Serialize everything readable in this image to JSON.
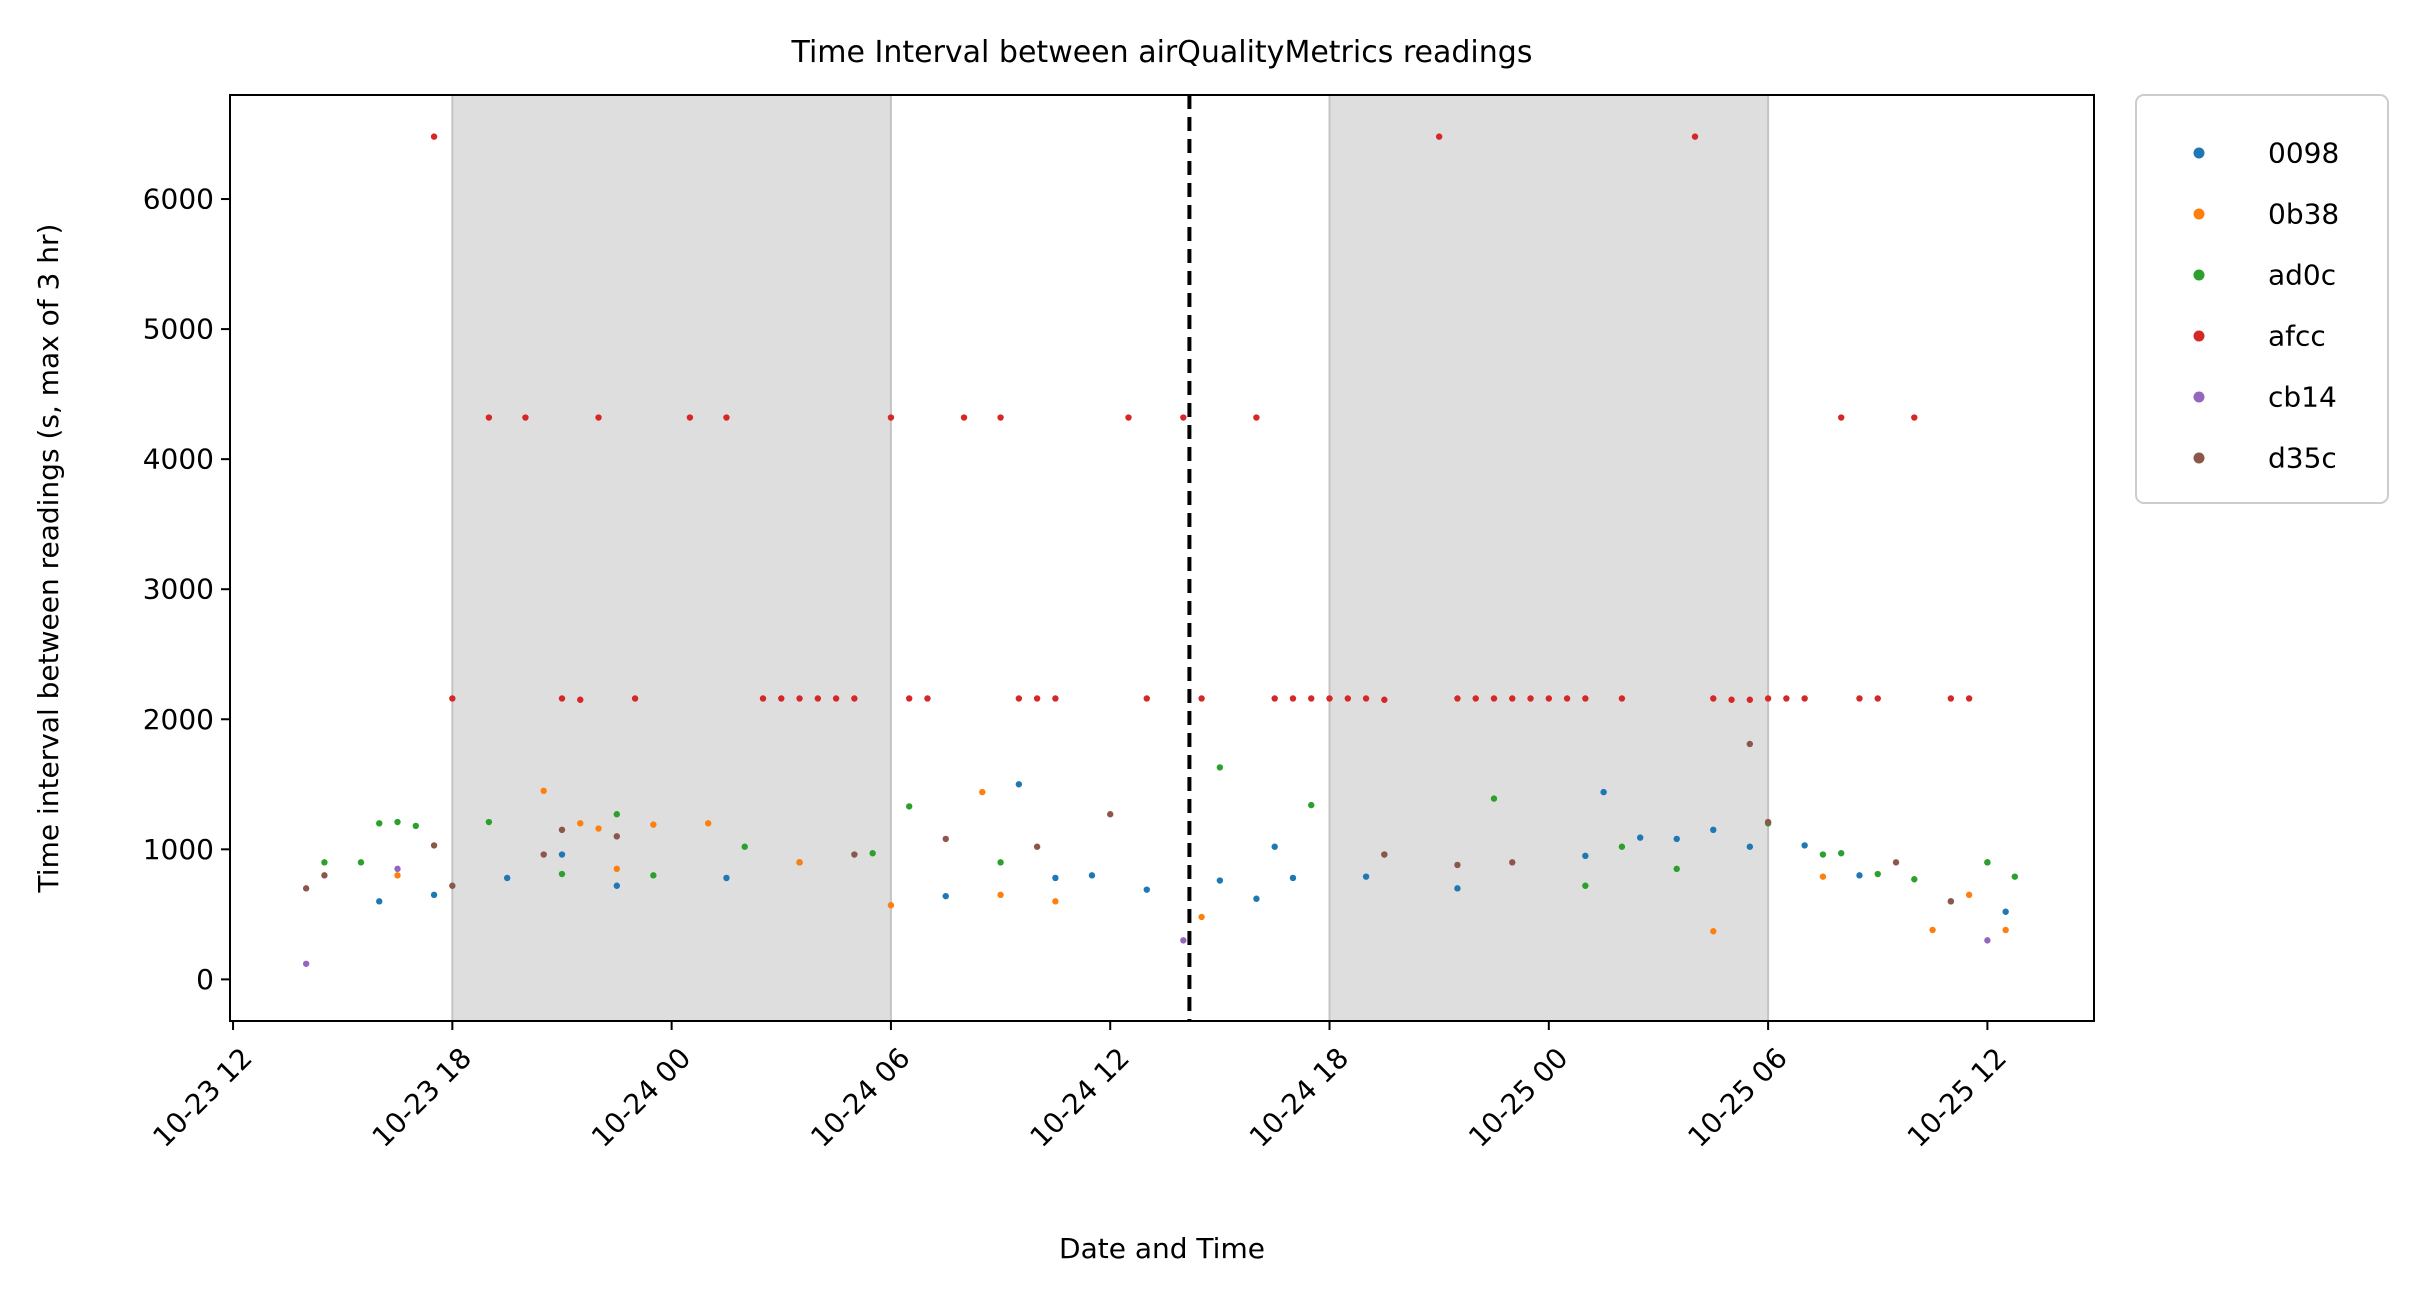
{
  "chart_data": {
    "type": "scatter",
    "title": "Time Interval between airQualityMetrics readings",
    "xlabel": "Date and Time",
    "ylabel": "Time interval between readings (s, max of 3 hr)",
    "x_ticks": [
      "10-23 12",
      "10-23 18",
      "10-24 00",
      "10-24 06",
      "10-24 12",
      "10-24 18",
      "10-25 00",
      "10-25 06",
      "10-25 12"
    ],
    "y_ticks": [
      "0",
      "1000",
      "2000",
      "3000",
      "4000",
      "5000",
      "6000"
    ],
    "xlim": [
      "2023-10-23 11:55",
      "2023-10-25 14:55"
    ],
    "ylim": [
      -320,
      6800
    ],
    "shaded_periods": [
      {
        "start": "2023-10-23 18:00",
        "end": "2023-10-24 06:00"
      },
      {
        "start": "2023-10-24 18:00",
        "end": "2023-10-25 06:00"
      }
    ],
    "vline": {
      "x": "2023-10-24 14:10",
      "style": "dashed"
    },
    "grid": false,
    "legend_position": "outside-top-right",
    "series": [
      {
        "name": "0098",
        "color": "#1f77b4",
        "points": [
          [
            "2023-10-23 16:00",
            600
          ],
          [
            "2023-10-23 17:30",
            650
          ],
          [
            "2023-10-23 19:30",
            780
          ],
          [
            "2023-10-23 21:00",
            960
          ],
          [
            "2023-10-23 22:30",
            720
          ],
          [
            "2023-10-24 01:30",
            780
          ],
          [
            "2023-10-24 03:30",
            900
          ],
          [
            "2023-10-24 07:30",
            640
          ],
          [
            "2023-10-24 09:30",
            1500
          ],
          [
            "2023-10-24 10:30",
            780
          ],
          [
            "2023-10-24 11:30",
            800
          ],
          [
            "2023-10-24 13:00",
            690
          ],
          [
            "2023-10-24 15:00",
            760
          ],
          [
            "2023-10-24 16:00",
            620
          ],
          [
            "2023-10-24 16:30",
            1020
          ],
          [
            "2023-10-24 17:00",
            780
          ],
          [
            "2023-10-24 19:00",
            790
          ],
          [
            "2023-10-24 21:30",
            700
          ],
          [
            "2023-10-25 01:00",
            950
          ],
          [
            "2023-10-25 01:30",
            1440
          ],
          [
            "2023-10-25 02:30",
            1090
          ],
          [
            "2023-10-25 03:30",
            1080
          ],
          [
            "2023-10-25 04:30",
            1150
          ],
          [
            "2023-10-25 05:30",
            1020
          ],
          [
            "2023-10-25 07:00",
            1030
          ],
          [
            "2023-10-25 08:30",
            800
          ],
          [
            "2023-10-25 11:00",
            600
          ],
          [
            "2023-10-25 12:00",
            900
          ],
          [
            "2023-10-25 12:30",
            520
          ]
        ]
      },
      {
        "name": "0b38",
        "color": "#ff7f0e",
        "points": [
          [
            "2023-10-23 16:30",
            800
          ],
          [
            "2023-10-23 20:30",
            1450
          ],
          [
            "2023-10-23 21:30",
            1200
          ],
          [
            "2023-10-23 22:00",
            1160
          ],
          [
            "2023-10-23 22:30",
            850
          ],
          [
            "2023-10-23 23:30",
            1190
          ],
          [
            "2023-10-24 01:00",
            1200
          ],
          [
            "2023-10-24 03:30",
            900
          ],
          [
            "2023-10-24 06:00",
            570
          ],
          [
            "2023-10-24 08:30",
            1440
          ],
          [
            "2023-10-24 09:00",
            650
          ],
          [
            "2023-10-24 10:30",
            600
          ],
          [
            "2023-10-24 14:30",
            480
          ],
          [
            "2023-10-25 04:30",
            370
          ],
          [
            "2023-10-25 07:30",
            790
          ],
          [
            "2023-10-25 10:30",
            380
          ],
          [
            "2023-10-25 11:30",
            650
          ],
          [
            "2023-10-25 12:30",
            380
          ]
        ]
      },
      {
        "name": "ad0c",
        "color": "#2ca02c",
        "points": [
          [
            "2023-10-23 14:30",
            900
          ],
          [
            "2023-10-23 15:30",
            900
          ],
          [
            "2023-10-23 16:00",
            1200
          ],
          [
            "2023-10-23 16:30",
            1210
          ],
          [
            "2023-10-23 17:00",
            1180
          ],
          [
            "2023-10-23 19:00",
            1210
          ],
          [
            "2023-10-23 21:00",
            810
          ],
          [
            "2023-10-23 22:30",
            1270
          ],
          [
            "2023-10-23 23:30",
            800
          ],
          [
            "2023-10-24 02:00",
            1020
          ],
          [
            "2023-10-24 05:30",
            970
          ],
          [
            "2023-10-24 06:30",
            1330
          ],
          [
            "2023-10-24 09:00",
            900
          ],
          [
            "2023-10-24 15:00",
            1630
          ],
          [
            "2023-10-24 17:30",
            1340
          ],
          [
            "2023-10-24 19:30",
            960
          ],
          [
            "2023-10-24 22:30",
            1390
          ],
          [
            "2023-10-25 01:00",
            720
          ],
          [
            "2023-10-25 02:00",
            1020
          ],
          [
            "2023-10-25 03:30",
            850
          ],
          [
            "2023-10-25 06:00",
            1200
          ],
          [
            "2023-10-25 07:30",
            960
          ],
          [
            "2023-10-25 08:00",
            970
          ],
          [
            "2023-10-25 09:00",
            810
          ],
          [
            "2023-10-25 10:00",
            770
          ],
          [
            "2023-10-25 12:00",
            900
          ],
          [
            "2023-10-25 12:45",
            790
          ]
        ]
      },
      {
        "name": "afcc",
        "color": "#d62728",
        "points": [
          [
            "2023-10-23 17:30",
            6480
          ],
          [
            "2023-10-23 18:00",
            2160
          ],
          [
            "2023-10-23 19:00",
            4320
          ],
          [
            "2023-10-23 20:00",
            4320
          ],
          [
            "2023-10-23 21:00",
            2160
          ],
          [
            "2023-10-23 21:30",
            2150
          ],
          [
            "2023-10-23 22:00",
            4320
          ],
          [
            "2023-10-23 23:00",
            2160
          ],
          [
            "2023-10-24 00:30",
            4320
          ],
          [
            "2023-10-24 01:30",
            4320
          ],
          [
            "2023-10-24 02:30",
            2160
          ],
          [
            "2023-10-24 03:00",
            2160
          ],
          [
            "2023-10-24 03:30",
            2160
          ],
          [
            "2023-10-24 04:00",
            2160
          ],
          [
            "2023-10-24 04:30",
            2160
          ],
          [
            "2023-10-24 05:00",
            2160
          ],
          [
            "2023-10-24 06:00",
            4320
          ],
          [
            "2023-10-24 06:30",
            2160
          ],
          [
            "2023-10-24 07:00",
            2160
          ],
          [
            "2023-10-24 08:00",
            4320
          ],
          [
            "2023-10-24 09:00",
            4320
          ],
          [
            "2023-10-24 09:30",
            2160
          ],
          [
            "2023-10-24 10:00",
            2160
          ],
          [
            "2023-10-24 10:30",
            2160
          ],
          [
            "2023-10-24 12:30",
            4320
          ],
          [
            "2023-10-24 13:00",
            2160
          ],
          [
            "2023-10-24 14:00",
            4320
          ],
          [
            "2023-10-24 14:30",
            2160
          ],
          [
            "2023-10-24 16:00",
            4320
          ],
          [
            "2023-10-24 16:30",
            2160
          ],
          [
            "2023-10-24 17:00",
            2160
          ],
          [
            "2023-10-24 17:30",
            2160
          ],
          [
            "2023-10-24 18:00",
            2160
          ],
          [
            "2023-10-24 18:30",
            2160
          ],
          [
            "2023-10-24 19:00",
            2160
          ],
          [
            "2023-10-24 19:30",
            2150
          ],
          [
            "2023-10-24 21:00",
            6480
          ],
          [
            "2023-10-24 21:30",
            2160
          ],
          [
            "2023-10-24 22:00",
            2160
          ],
          [
            "2023-10-24 22:30",
            2160
          ],
          [
            "2023-10-24 23:00",
            2160
          ],
          [
            "2023-10-24 23:30",
            2160
          ],
          [
            "2023-10-25 00:00",
            2160
          ],
          [
            "2023-10-25 00:30",
            2160
          ],
          [
            "2023-10-25 01:00",
            2160
          ],
          [
            "2023-10-25 02:00",
            2160
          ],
          [
            "2023-10-25 04:00",
            6480
          ],
          [
            "2023-10-25 04:30",
            2160
          ],
          [
            "2023-10-25 05:00",
            2150
          ],
          [
            "2023-10-25 05:30",
            2150
          ],
          [
            "2023-10-25 06:00",
            2160
          ],
          [
            "2023-10-25 06:30",
            2160
          ],
          [
            "2023-10-25 07:00",
            2160
          ],
          [
            "2023-10-25 08:00",
            4320
          ],
          [
            "2023-10-25 08:30",
            2160
          ],
          [
            "2023-10-25 09:00",
            2160
          ],
          [
            "2023-10-25 10:00",
            4320
          ],
          [
            "2023-10-25 11:00",
            2160
          ],
          [
            "2023-10-25 11:30",
            2160
          ]
        ]
      },
      {
        "name": "cb14",
        "color": "#9467bd",
        "points": [
          [
            "2023-10-23 14:00",
            120
          ],
          [
            "2023-10-23 16:30",
            850
          ],
          [
            "2023-10-24 14:00",
            300
          ],
          [
            "2023-10-25 12:00",
            300
          ]
        ]
      },
      {
        "name": "d35c",
        "color": "#8c564b",
        "points": [
          [
            "2023-10-23 14:00",
            700
          ],
          [
            "2023-10-23 14:30",
            800
          ],
          [
            "2023-10-23 17:30",
            1030
          ],
          [
            "2023-10-23 18:00",
            720
          ],
          [
            "2023-10-23 20:30",
            960
          ],
          [
            "2023-10-23 21:00",
            1150
          ],
          [
            "2023-10-23 22:30",
            1100
          ],
          [
            "2023-10-24 05:00",
            960
          ],
          [
            "2023-10-24 07:30",
            1080
          ],
          [
            "2023-10-24 10:00",
            1020
          ],
          [
            "2023-10-24 12:00",
            1270
          ],
          [
            "2023-10-24 19:30",
            960
          ],
          [
            "2023-10-24 21:30",
            880
          ],
          [
            "2023-10-24 23:00",
            900
          ],
          [
            "2023-10-25 05:30",
            1810
          ],
          [
            "2023-10-25 06:00",
            1210
          ],
          [
            "2023-10-25 09:30",
            900
          ],
          [
            "2023-10-25 11:00",
            600
          ]
        ]
      }
    ]
  }
}
